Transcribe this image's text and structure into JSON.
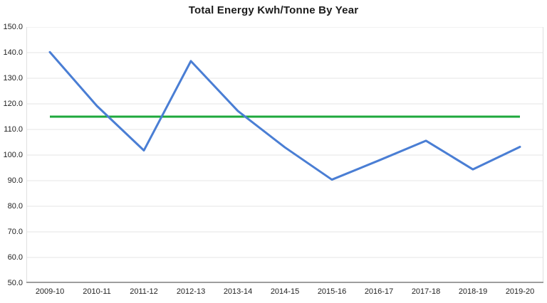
{
  "title": "Total Energy Kwh/Tonne By Year",
  "chart_data": {
    "type": "line",
    "categories": [
      "2009-10",
      "2010-11",
      "2011-12",
      "2012-13",
      "2013-14",
      "2014-15",
      "2015-16",
      "2016-17",
      "2017-18",
      "2018-19",
      "2019-20"
    ],
    "series": [
      {
        "values": [
          140.2,
          119.2,
          101.8,
          136.7,
          117.2,
          103.0,
          90.4,
          97.9,
          105.6,
          94.4,
          103.2
        ],
        "color": "#4a7ed4"
      }
    ],
    "target_line": {
      "value": 115.0,
      "color": "#1ea83c"
    },
    "ylim": [
      50,
      150
    ],
    "y_step": 10,
    "y_tick_labels": [
      "150.0",
      "140.0",
      "130.0",
      "120.0",
      "110.0",
      "100.0",
      "90.0",
      "80.0",
      "70.0",
      "60.0",
      "50.0"
    ],
    "grid": true,
    "legend": "none",
    "colors": {
      "gridline": "#e6e6e6",
      "axis_line": "#9e9e9e",
      "border_line": "#e0e0e0",
      "label_text": "#222222",
      "title_text": "#1c1c1c"
    }
  }
}
